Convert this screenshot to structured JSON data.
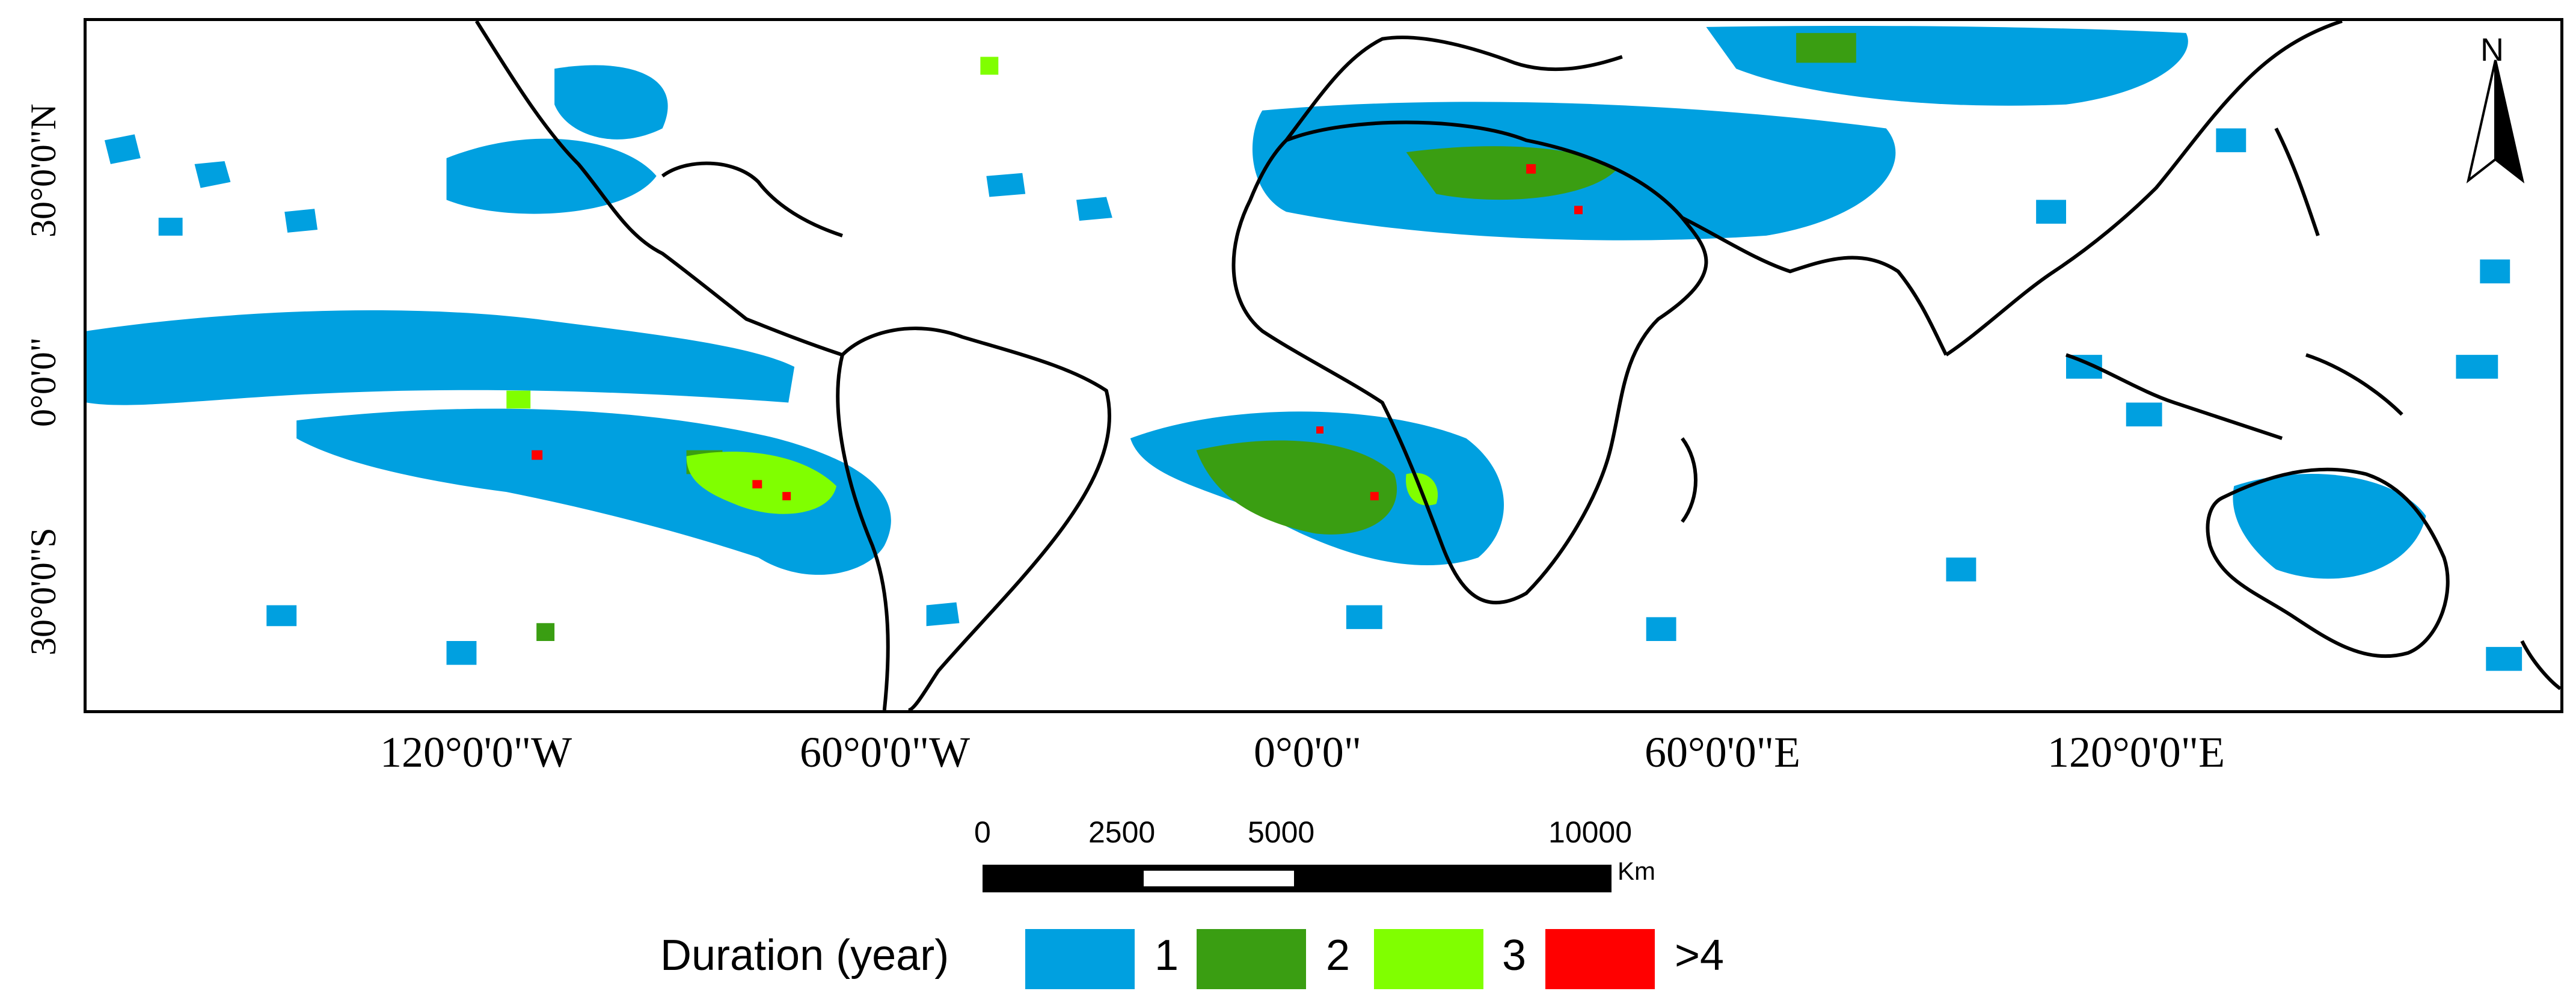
{
  "map": {
    "latitude_labels": [
      "30°0'0\"N",
      "0°0'0\"",
      "30°0'0\"S"
    ],
    "longitude_labels": [
      "120°0'0\"W",
      "60°0'0\"W",
      "0°0'0\"",
      "60°0'0\"E",
      "120°0'0\"E"
    ],
    "north_arrow": "N",
    "scale_bar": {
      "ticks": [
        "0",
        "2500",
        "5000",
        "10000"
      ],
      "unit": "Km"
    },
    "legend": {
      "title": "Duration (year)",
      "classes": [
        {
          "label": "1",
          "color": "#00A0E0"
        },
        {
          "label": "2",
          "color": "#3A9E12"
        },
        {
          "label": "3",
          "color": "#80FF00"
        },
        {
          "label": ">4",
          "color": "#FF0000"
        }
      ]
    },
    "colors": {
      "coastline": "#000000",
      "background": "#ffffff"
    }
  }
}
